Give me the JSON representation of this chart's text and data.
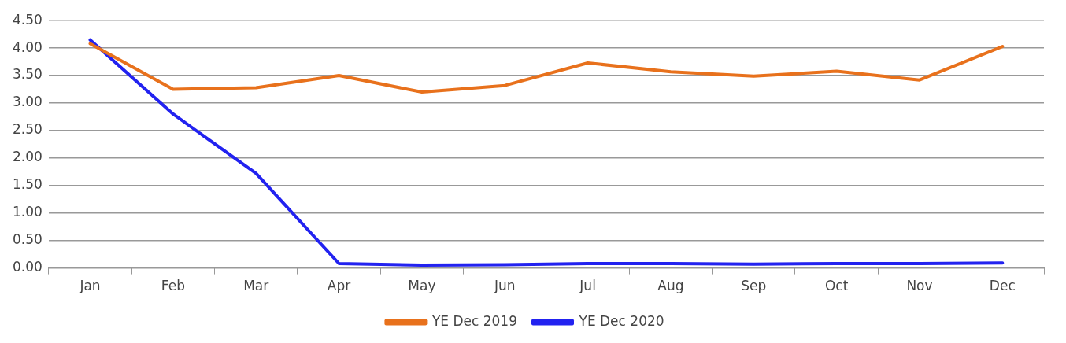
{
  "chart_data": {
    "type": "line",
    "categories": [
      "Jan",
      "Feb",
      "Mar",
      "Apr",
      "May",
      "Jun",
      "Jul",
      "Aug",
      "Sep",
      "Oct",
      "Nov",
      "Dec"
    ],
    "series": [
      {
        "name": "YE Dec 2019",
        "color": "#e8711c",
        "values": [
          4.08,
          3.25,
          3.28,
          3.5,
          3.2,
          3.32,
          3.73,
          3.57,
          3.49,
          3.58,
          3.42,
          4.03
        ]
      },
      {
        "name": "YE Dec 2020",
        "color": "#2222f0",
        "values": [
          4.15,
          2.8,
          1.72,
          0.08,
          0.05,
          0.06,
          0.08,
          0.08,
          0.07,
          0.08,
          0.08,
          0.09
        ]
      }
    ],
    "ylim": [
      0,
      4.5
    ],
    "yticks": [
      {
        "value": 0,
        "label": "0.00"
      },
      {
        "value": 0.5,
        "label": "0.50"
      },
      {
        "value": 1,
        "label": "1.00"
      },
      {
        "value": 1.5,
        "label": "1.50"
      },
      {
        "value": 2,
        "label": "2.00"
      },
      {
        "value": 2.5,
        "label": "2.50"
      },
      {
        "value": 3,
        "label": "3.00"
      },
      {
        "value": 3.5,
        "label": "3.50"
      },
      {
        "value": 4,
        "label": "4.00"
      },
      {
        "value": 4.5,
        "label": "4.50"
      }
    ],
    "grid": "y",
    "legend": "bottom",
    "marker": "none",
    "line_style": "solid"
  }
}
